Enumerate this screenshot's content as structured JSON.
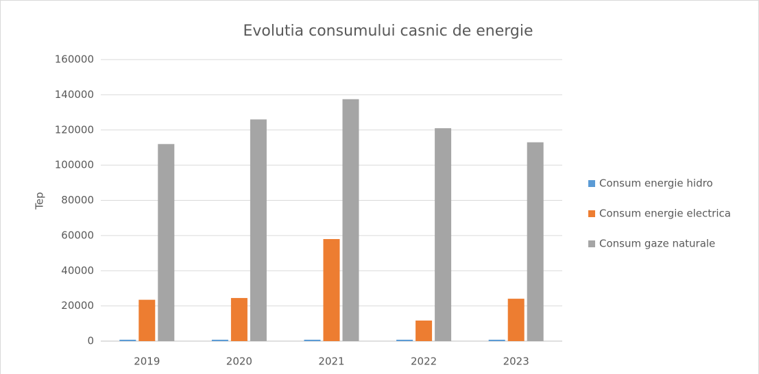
{
  "chart_data": {
    "type": "bar",
    "title": "Evolutia consumului casnic  de energie",
    "y_label": "Tep",
    "categories": [
      "2019",
      "2020",
      "2021",
      "2022",
      "2023"
    ],
    "series": [
      {
        "name": "Consum energie hidro",
        "color": "#5b9bd5",
        "values": [
          800,
          800,
          800,
          800,
          800
        ]
      },
      {
        "name": "Consum energie electrica",
        "color": "#ed7d31",
        "values": [
          23500,
          24500,
          58000,
          11700,
          24100
        ]
      },
      {
        "name": "Consum gaze naturale",
        "color": "#a5a5a5",
        "values": [
          112000,
          126000,
          137500,
          121000,
          113000
        ]
      }
    ],
    "ylim": [
      0,
      160000
    ],
    "yticks": [
      0,
      20000,
      40000,
      60000,
      80000,
      100000,
      120000,
      140000,
      160000
    ],
    "grid": true,
    "legend": "right"
  }
}
